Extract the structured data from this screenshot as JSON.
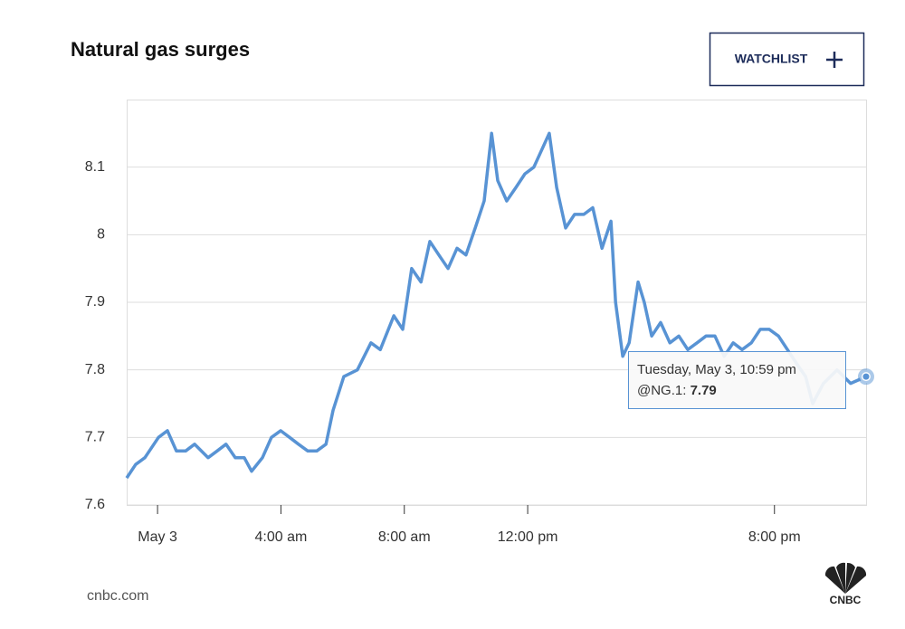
{
  "chart_data": {
    "type": "line",
    "title": "Natural gas surges",
    "button": "WATCHLIST",
    "source": "cnbc.com",
    "logo": "CNBC",
    "x": [
      -1.0,
      -0.71,
      -0.41,
      0.03,
      0.32,
      0.61,
      0.91,
      1.2,
      1.64,
      1.93,
      2.22,
      2.52,
      2.81,
      3.05,
      3.4,
      3.69,
      3.99,
      4.28,
      4.57,
      4.87,
      5.16,
      5.46,
      5.69,
      6.04,
      6.48,
      6.92,
      7.22,
      7.66,
      7.95,
      8.24,
      8.54,
      8.83,
      9.12,
      9.42,
      9.71,
      10.0,
      10.3,
      10.59,
      10.83,
      11.03,
      11.32,
      11.62,
      11.91,
      12.2,
      12.5,
      12.7,
      12.94,
      13.23,
      13.52,
      13.82,
      14.11,
      14.41,
      14.7,
      14.85,
      15.08,
      15.29,
      15.58,
      15.78,
      16.02,
      16.31,
      16.61,
      16.9,
      17.19,
      17.49,
      17.78,
      18.07,
      18.37,
      18.66,
      18.95,
      19.25,
      19.54,
      19.83,
      20.13,
      20.42,
      20.71,
      21.01,
      21.24,
      21.59,
      22.03,
      22.47,
      22.97
    ],
    "series": [
      {
        "name": "@NG.1",
        "color": "#5893d4",
        "values": [
          7.64,
          7.66,
          7.67,
          7.7,
          7.71,
          7.68,
          7.68,
          7.69,
          7.67,
          7.68,
          7.69,
          7.67,
          7.67,
          7.65,
          7.67,
          7.7,
          7.71,
          7.7,
          7.69,
          7.68,
          7.68,
          7.69,
          7.74,
          7.79,
          7.8,
          7.84,
          7.83,
          7.88,
          7.86,
          7.95,
          7.93,
          7.99,
          7.97,
          7.95,
          7.98,
          7.97,
          8.01,
          8.05,
          8.15,
          8.08,
          8.05,
          8.07,
          8.09,
          8.1,
          8.13,
          8.15,
          8.07,
          8.01,
          8.03,
          8.03,
          8.04,
          7.98,
          8.02,
          7.9,
          7.82,
          7.84,
          7.93,
          7.9,
          7.85,
          7.87,
          7.84,
          7.85,
          7.83,
          7.84,
          7.85,
          7.85,
          7.82,
          7.84,
          7.83,
          7.84,
          7.86,
          7.86,
          7.85,
          7.83,
          7.81,
          7.79,
          7.75,
          7.78,
          7.8,
          7.78,
          7.79
        ]
      }
    ],
    "xlim": [
      -1,
      23
    ],
    "xticks": [
      {
        "value": 0,
        "label": "May 3"
      },
      {
        "value": 4,
        "label": "4:00 am"
      },
      {
        "value": 8,
        "label": "8:00 am"
      },
      {
        "value": 12,
        "label": "12:00 pm"
      },
      {
        "value": 20,
        "label": "8:00 pm"
      }
    ],
    "ylim": [
      7.6,
      8.2
    ],
    "yticks": [
      7.6,
      7.7,
      7.8,
      7.9,
      8,
      8.1
    ],
    "grid": true,
    "tooltip": {
      "date": "Tuesday, May 3, 10:59 pm",
      "label": "@NG.1:",
      "value": 7.79
    }
  }
}
